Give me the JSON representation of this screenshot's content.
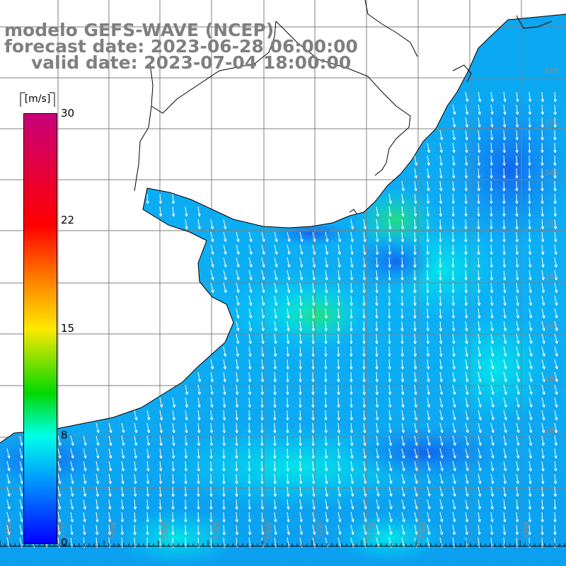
{
  "title": {
    "line1": "modelo GEFS-WAVE (NCEP)",
    "line2": "forecast date: 2023-06-28 06:00:00",
    "line3": "valid date: 2023-07-04 18:00:00"
  },
  "colorbar": {
    "unit": "[m/s]",
    "ticks": [
      "30",
      "22",
      "15",
      "8",
      "0"
    ],
    "min": 0,
    "max": 30,
    "colors": [
      "#0000ff",
      "#0090ff",
      "#00ffea",
      "#00d800",
      "#ffe800",
      "#ff7a00",
      "#ff0000",
      "#c8007a"
    ]
  },
  "map": {
    "bottom_labels": [
      "58W",
      "57W",
      "56W",
      "55W",
      "54W",
      "53W",
      "52W",
      "51W",
      "50W",
      "49W"
    ],
    "right_labels": [
      "32S",
      "33S",
      "34S",
      "35S",
      "36S",
      "37S",
      "38S",
      "39S"
    ],
    "ocean_color": "#00b4f2",
    "land_color": "#ffffff",
    "arrow_color": "#ffffff",
    "grid_color": "#7f7f7f"
  }
}
